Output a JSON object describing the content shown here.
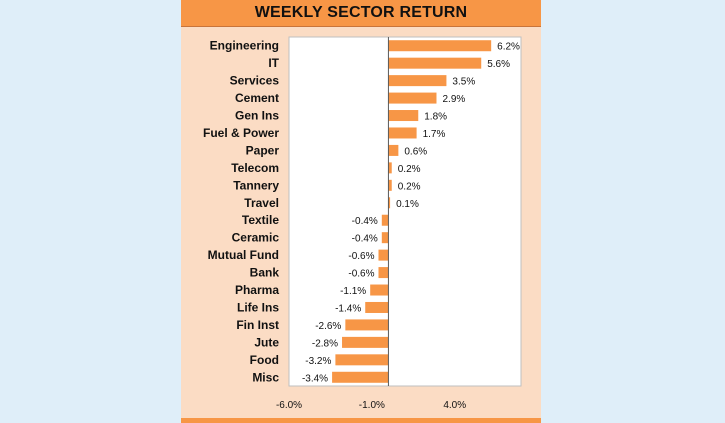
{
  "chart_data": {
    "type": "bar",
    "orientation": "horizontal",
    "title": "WEEKLY SECTOR RETURN",
    "categories": [
      "Engineering",
      "IT",
      "Services",
      "Cement",
      "Gen Ins",
      "Fuel & Power",
      "Paper",
      "Telecom",
      "Tannery",
      "Travel",
      "Textile",
      "Ceramic",
      "Mutual Fund",
      "Bank",
      "Pharma",
      "Life Ins",
      "Fin Inst",
      "Jute",
      "Food",
      "Misc"
    ],
    "values": [
      6.2,
      5.6,
      3.5,
      2.9,
      1.8,
      1.7,
      0.6,
      0.2,
      0.2,
      0.1,
      -0.4,
      -0.4,
      -0.6,
      -0.6,
      -1.1,
      -1.4,
      -2.6,
      -2.8,
      -3.2,
      -3.4
    ],
    "value_labels": [
      "6.2%",
      "5.6%",
      "3.5%",
      "2.9%",
      "1.8%",
      "1.7%",
      "0.6%",
      "0.2%",
      "0.2%",
      "0.1%",
      "-0.4%",
      "-0.4%",
      "-0.6%",
      "-0.6%",
      "-1.1%",
      "-1.4%",
      "-2.6%",
      "-2.8%",
      "-3.2%",
      "-3.4%"
    ],
    "xticks": [
      -6.0,
      -1.0,
      4.0
    ],
    "xtick_labels": [
      "-6.0%",
      "-1.0%",
      "4.0%"
    ],
    "xlim": [
      -6.0,
      8.0
    ],
    "bar_color": "#f79646",
    "plot_background": "#ffffff",
    "grid": false,
    "legend": "none"
  }
}
